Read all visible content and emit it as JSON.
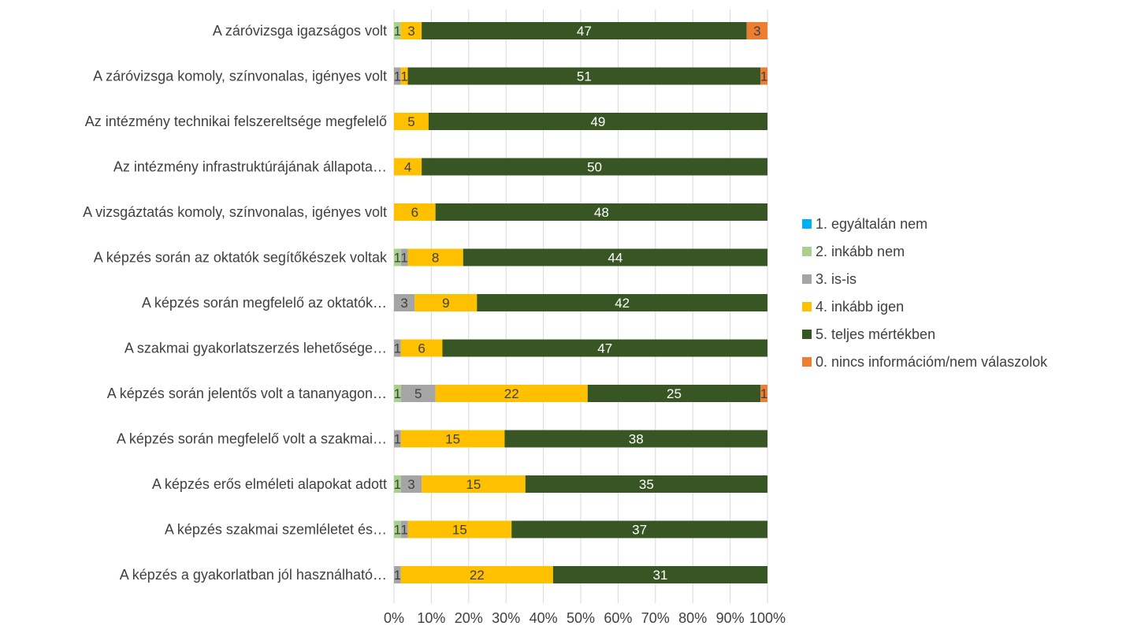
{
  "chart_data": {
    "type": "bar",
    "orientation": "horizontal",
    "stacking": "percent",
    "categories": [
      "A záróvizsga igazságos volt",
      "A záróvizsga komoly, színvonalas, igényes volt",
      "Az intézmény technikai felszereltsége megfelelő",
      "Az intézmény infrastruktúrájának állapota…",
      "A vizsgáztatás komoly, színvonalas, igényes volt",
      "A képzés során az oktatók segítőkészek voltak",
      "A képzés során megfelelő az oktatók…",
      "A szakmai gyakorlatszerzés lehetősége…",
      "A képzés során jelentős volt a tananyagon…",
      "A képzés során megfelelő volt a szakmai…",
      "A képzés erős elméleti alapokat adott",
      "A képzés szakmai szemléletet és…",
      "A képzés a gyakorlatban jól használható…"
    ],
    "series": [
      {
        "name": "1. egyáltalán nem",
        "color": "#00B0F0",
        "values": [
          0,
          0,
          0,
          0,
          0,
          0,
          0,
          0,
          0,
          0,
          0,
          0,
          0
        ]
      },
      {
        "name": "2. inkább nem",
        "color": "#A9D18E",
        "values": [
          1,
          0,
          0,
          0,
          0,
          1,
          0,
          0,
          1,
          0,
          1,
          1,
          0
        ]
      },
      {
        "name": "3. is-is",
        "color": "#A5A5A5",
        "values": [
          0,
          1,
          0,
          0,
          0,
          1,
          3,
          1,
          5,
          1,
          3,
          1,
          1
        ]
      },
      {
        "name": "4. inkább igen",
        "color": "#FFC000",
        "values": [
          3,
          1,
          5,
          4,
          6,
          8,
          9,
          6,
          22,
          15,
          15,
          15,
          22
        ]
      },
      {
        "name": "5. teljes mértékben",
        "color": "#375623",
        "values": [
          47,
          51,
          49,
          50,
          48,
          44,
          42,
          47,
          25,
          38,
          35,
          37,
          31
        ]
      },
      {
        "name": "0. nincs információm/nem válaszolok",
        "color": "#ED7D31",
        "values": [
          3,
          1,
          0,
          0,
          0,
          0,
          0,
          0,
          1,
          0,
          0,
          0,
          0
        ]
      }
    ],
    "xaxis": {
      "ticks": [
        "0%",
        "10%",
        "20%",
        "30%",
        "40%",
        "50%",
        "60%",
        "70%",
        "80%",
        "90%",
        "100%"
      ],
      "range": [
        0,
        100
      ]
    },
    "grid": true,
    "legend_position": "right"
  }
}
